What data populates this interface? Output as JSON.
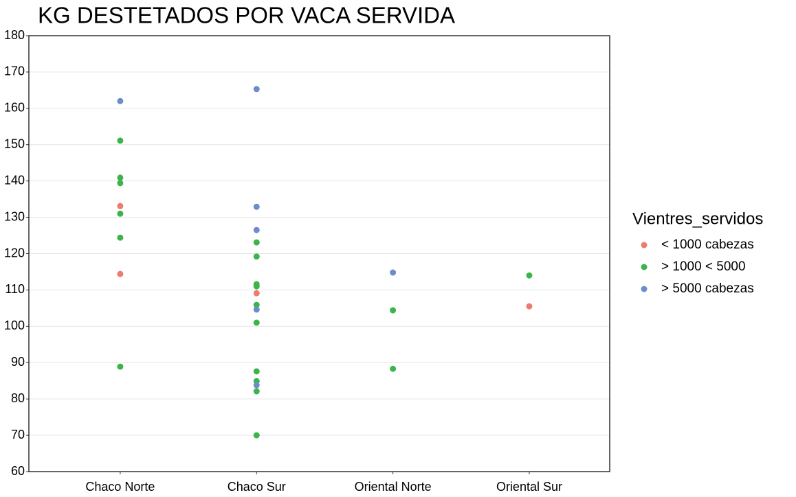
{
  "chart_data": {
    "type": "strip",
    "title": "KG DESTETADOS POR VACA SERVIDA",
    "categories": [
      "Chaco Norte",
      "Chaco Sur",
      "Oriental Norte",
      "Oriental Sur"
    ],
    "ylim": [
      60,
      180
    ],
    "yticks": [
      60,
      70,
      80,
      90,
      100,
      110,
      120,
      130,
      140,
      150,
      160,
      170,
      180
    ],
    "grid": true,
    "legend_title": "Vientres_servidos",
    "legend": "right",
    "series": [
      {
        "name": "< 1000 cabezas",
        "color": "#ec7b70",
        "categories": [
          "Chaco Norte",
          "Chaco Norte",
          "Chaco Sur",
          "Oriental Sur"
        ],
        "values": [
          133.1,
          114.4,
          109.1,
          105.5
        ]
      },
      {
        "name": "> 1000 < 5000",
        "color": "#3cb44b",
        "categories": [
          "Chaco Norte",
          "Chaco Norte",
          "Chaco Norte",
          "Chaco Norte",
          "Chaco Norte",
          "Chaco Norte",
          "Chaco Sur",
          "Chaco Sur",
          "Chaco Sur",
          "Chaco Sur",
          "Chaco Sur",
          "Chaco Sur",
          "Chaco Sur",
          "Chaco Sur",
          "Chaco Sur",
          "Chaco Sur",
          "Oriental Norte",
          "Oriental Norte",
          "Oriental Sur"
        ],
        "values": [
          151.1,
          140.9,
          139.4,
          131.0,
          124.4,
          88.9,
          123.1,
          119.2,
          111.6,
          111.0,
          105.9,
          101.0,
          87.6,
          84.9,
          82.1,
          70.0,
          104.4,
          88.3,
          114.0
        ]
      },
      {
        "name": "> 5000 cabezas",
        "color": "#6b8dcc",
        "categories": [
          "Chaco Norte",
          "Chaco Sur",
          "Chaco Sur",
          "Chaco Sur",
          "Chaco Sur",
          "Chaco Sur",
          "Oriental Norte"
        ],
        "values": [
          162.0,
          165.3,
          132.9,
          126.5,
          104.6,
          83.8,
          114.8
        ]
      }
    ]
  }
}
